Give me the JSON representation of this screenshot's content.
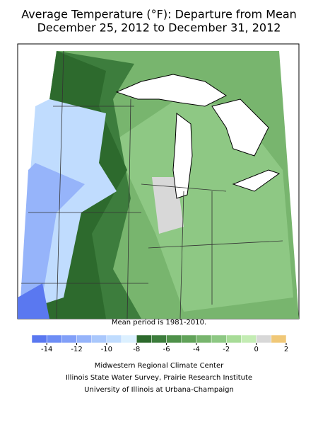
{
  "header": {
    "title_lines": [
      "Average Temperature (°F): Departure from Mean",
      "December 25, 2012 to December 31, 2012"
    ]
  },
  "map": {
    "note": "Mean period is 1981-2010."
  },
  "legend": {
    "bins": [
      -15,
      -14,
      -13,
      -12,
      -11,
      -10,
      -9,
      -8,
      -7,
      -6,
      -5,
      -4,
      -3,
      -2,
      -1,
      0,
      1,
      2
    ],
    "colors": [
      "#5a78f0",
      "#6e8ef5",
      "#82a0f8",
      "#96b4fa",
      "#aac8fc",
      "#c0dcfe",
      "#dcf0ff",
      "#2d6a2d",
      "#3d7d3d",
      "#4f914a",
      "#62a35a",
      "#78b56e",
      "#8ec884",
      "#a8dc98",
      "#c4ecb4",
      "#d8d8d8",
      "#f0c878"
    ],
    "ticks": [
      -14,
      -12,
      -10,
      -8,
      -6,
      -4,
      -2,
      0,
      2
    ]
  },
  "credits": [
    "Midwestern Regional Climate Center",
    "Illinois State Water Survey, Prairie Research Institute",
    "University of Illinois at Urbana-Champaign"
  ]
}
